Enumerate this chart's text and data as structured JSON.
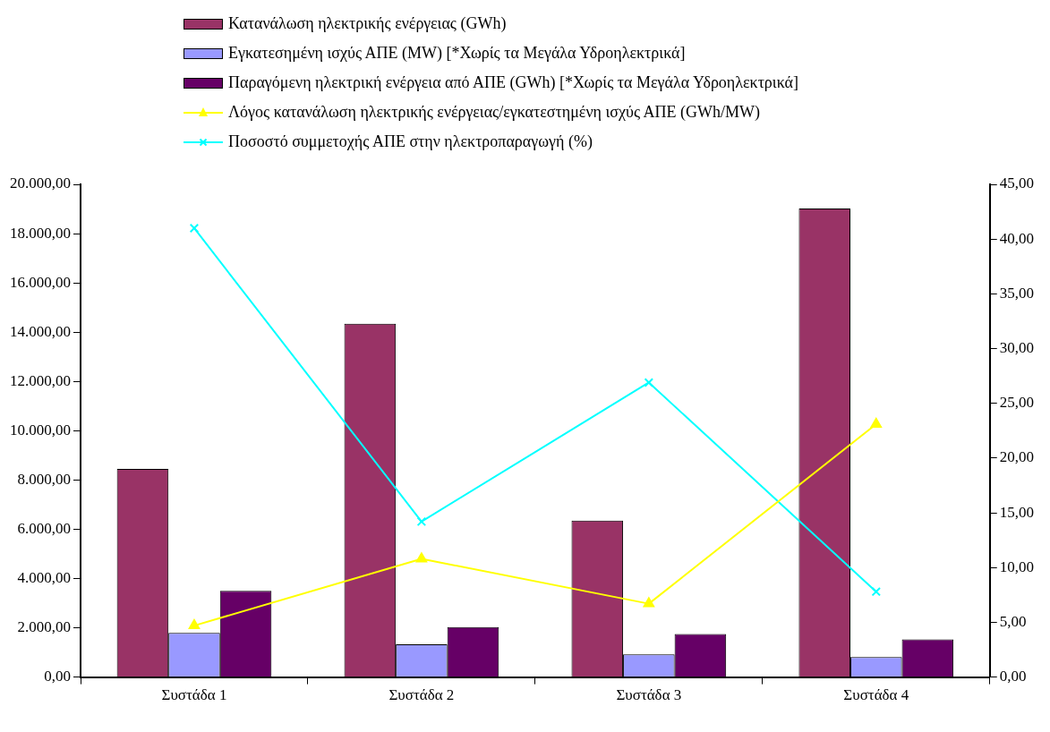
{
  "chart_data": {
    "type": "bar",
    "categories": [
      "Συστάδα 1",
      "Συστάδα 2",
      "Συστάδα 3",
      "Συστάδα 4"
    ],
    "series": [
      {
        "name": "Κατανάλωση ηλεκτρικής ενέργειας (GWh)",
        "color": "#993366",
        "values": [
          8450,
          14340,
          6350,
          19020
        ]
      },
      {
        "name": "Εγκατεσημένη ισχύς ΑΠΕ (MW) [*Χωρίς τα Μεγάλα Υδροηλεκτρικά]",
        "color": "#9999ff",
        "values": [
          1790,
          1330,
          920,
          810
        ]
      },
      {
        "name": "Παραγόμενη ηλεκτρική ενέργεια από ΑΠΕ (GWh) [*Χωρίς τα Μεγάλα Υδροηλεκτρικά]",
        "color": "#660066",
        "values": [
          3500,
          2030,
          1750,
          1530
        ]
      },
      {
        "name": "Λόγος κατανάλωση ηλεκτρικής ενέργειας/εγκατεστημένη ισχύς ΑΠΕ (GWh/MW)",
        "type": "line",
        "axis": "y2",
        "marker": "triangle",
        "color": "#ffff00",
        "values": [
          4.7,
          10.8,
          6.7,
          23.1
        ]
      },
      {
        "name": "Ποσοστό συμμετοχής ΑΠΕ στην ηλεκτροπαραγωγή (%)",
        "type": "line",
        "axis": "y2",
        "marker": "cross",
        "color": "#00ffff",
        "values": [
          41.0,
          14.2,
          26.9,
          7.8
        ]
      }
    ],
    "ylim": [
      0,
      20000
    ],
    "yticks": [
      {
        "value": 0,
        "label": "0,00"
      },
      {
        "value": 2000,
        "label": "2.000,00"
      },
      {
        "value": 4000,
        "label": "4.000,00"
      },
      {
        "value": 6000,
        "label": "6.000,00"
      },
      {
        "value": 8000,
        "label": "8.000,00"
      },
      {
        "value": 10000,
        "label": "10.000,00"
      },
      {
        "value": 12000,
        "label": "12.000,00"
      },
      {
        "value": 14000,
        "label": "14.000,00"
      },
      {
        "value": 16000,
        "label": "16.000,00"
      },
      {
        "value": 18000,
        "label": "18.000,00"
      },
      {
        "value": 20000,
        "label": "20.000,00"
      }
    ],
    "y2lim": [
      0,
      45
    ],
    "y2ticks": [
      {
        "value": 0,
        "label": "0,00"
      },
      {
        "value": 5,
        "label": "5,00"
      },
      {
        "value": 10,
        "label": "10,00"
      },
      {
        "value": 15,
        "label": "15,00"
      },
      {
        "value": 20,
        "label": "20,00"
      },
      {
        "value": 25,
        "label": "25,00"
      },
      {
        "value": 30,
        "label": "30,00"
      },
      {
        "value": 35,
        "label": "35,00"
      },
      {
        "value": 40,
        "label": "40,00"
      },
      {
        "value": 45,
        "label": "45,00"
      }
    ],
    "grid": false,
    "legend": "top"
  }
}
